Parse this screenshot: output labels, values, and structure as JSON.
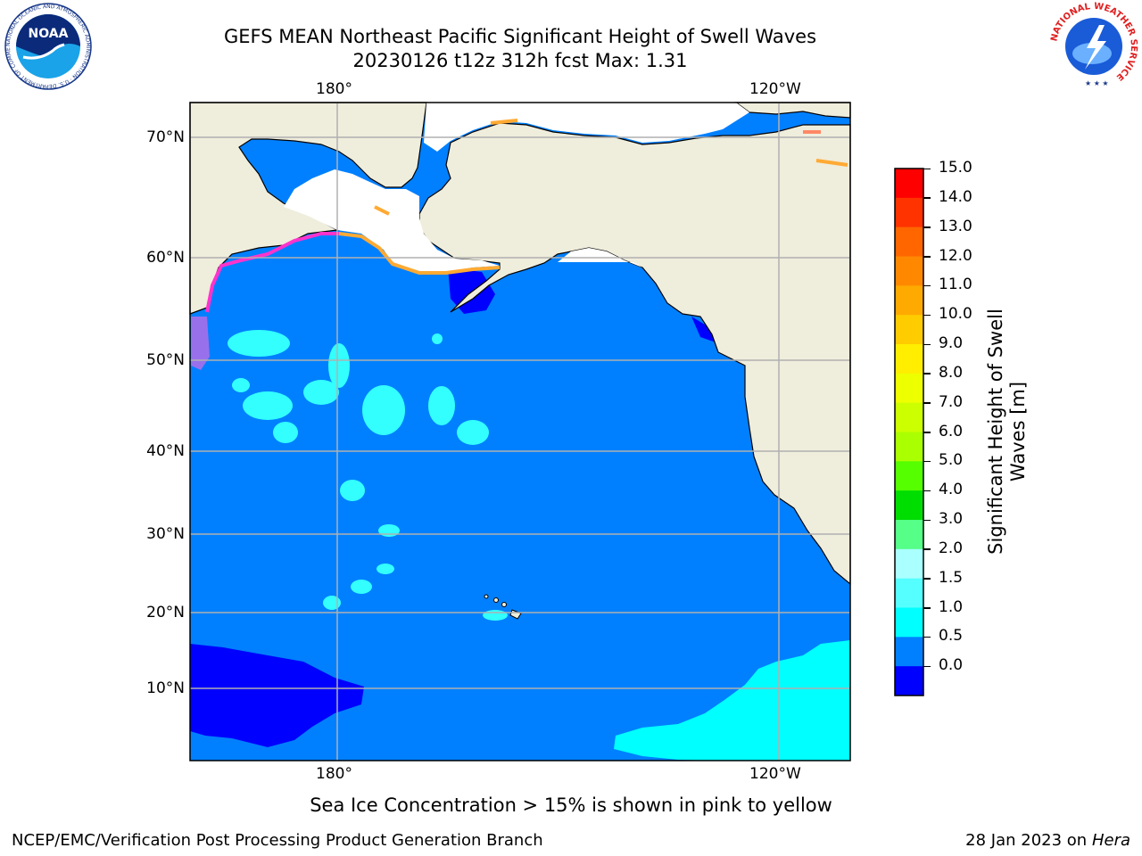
{
  "title": {
    "line1": "GEFS MEAN Northeast Pacific Significant Height of Swell Waves",
    "line2": "20230126 t12z 312h fcst   Max: 1.31"
  },
  "map": {
    "lon_labels_top": [
      "180°",
      "120°W"
    ],
    "lon_labels_bottom": [
      "180°",
      "120°W"
    ],
    "lat_labels": [
      "70°N",
      "60°N",
      "50°N",
      "40°N",
      "30°N",
      "20°N",
      "10°N"
    ],
    "colors": {
      "land": "#efeddc",
      "ocean_0_5": "#0000ff",
      "ocean_0_5_1": "#0080ff",
      "ocean_1_1_5": "#00ffff",
      "ice_none": "#ffffff",
      "ice_pink": "#ff33cc",
      "ice_orange": "#ffaa33",
      "gridline": "#b0b0b0"
    }
  },
  "colorbar": {
    "label_line1": "Significant Height of Swell",
    "label_line2": "Waves [m]",
    "ticks": [
      "15.0",
      "14.0",
      "13.0",
      "12.0",
      "11.0",
      "10.0",
      "9.0",
      "8.0",
      "7.0",
      "6.0",
      "5.0",
      "4.0",
      "3.0",
      "2.0",
      "1.5",
      "1.0",
      "0.5",
      "0.0"
    ],
    "colors_top_to_bottom": [
      "#ff0000",
      "#ff3300",
      "#ff6600",
      "#ff8800",
      "#ffaa00",
      "#ffcc00",
      "#ffee00",
      "#eeff00",
      "#ccff00",
      "#aaff00",
      "#55ff00",
      "#00dd00",
      "#55ff88",
      "#aaffff",
      "#55ffff",
      "#00ffff",
      "#0080ff",
      "#0000ff"
    ]
  },
  "caption": "Sea Ice Concentration > 15% is shown in pink to yellow",
  "footer": {
    "left": "NCEP/EMC/Verification Post Processing Product Generation Branch",
    "right_prefix": "28 Jan 2023 on ",
    "right_machine": "Hera"
  },
  "logos": {
    "noaa_text": "NOAA",
    "noaa_ring_text": "NATIONAL OCEANIC AND ATMOSPHERIC ADMINISTRATION · U.S. DEPARTMENT OF COMMERCE",
    "nws_ring_text": "NATIONAL WEATHER SERVICE"
  }
}
